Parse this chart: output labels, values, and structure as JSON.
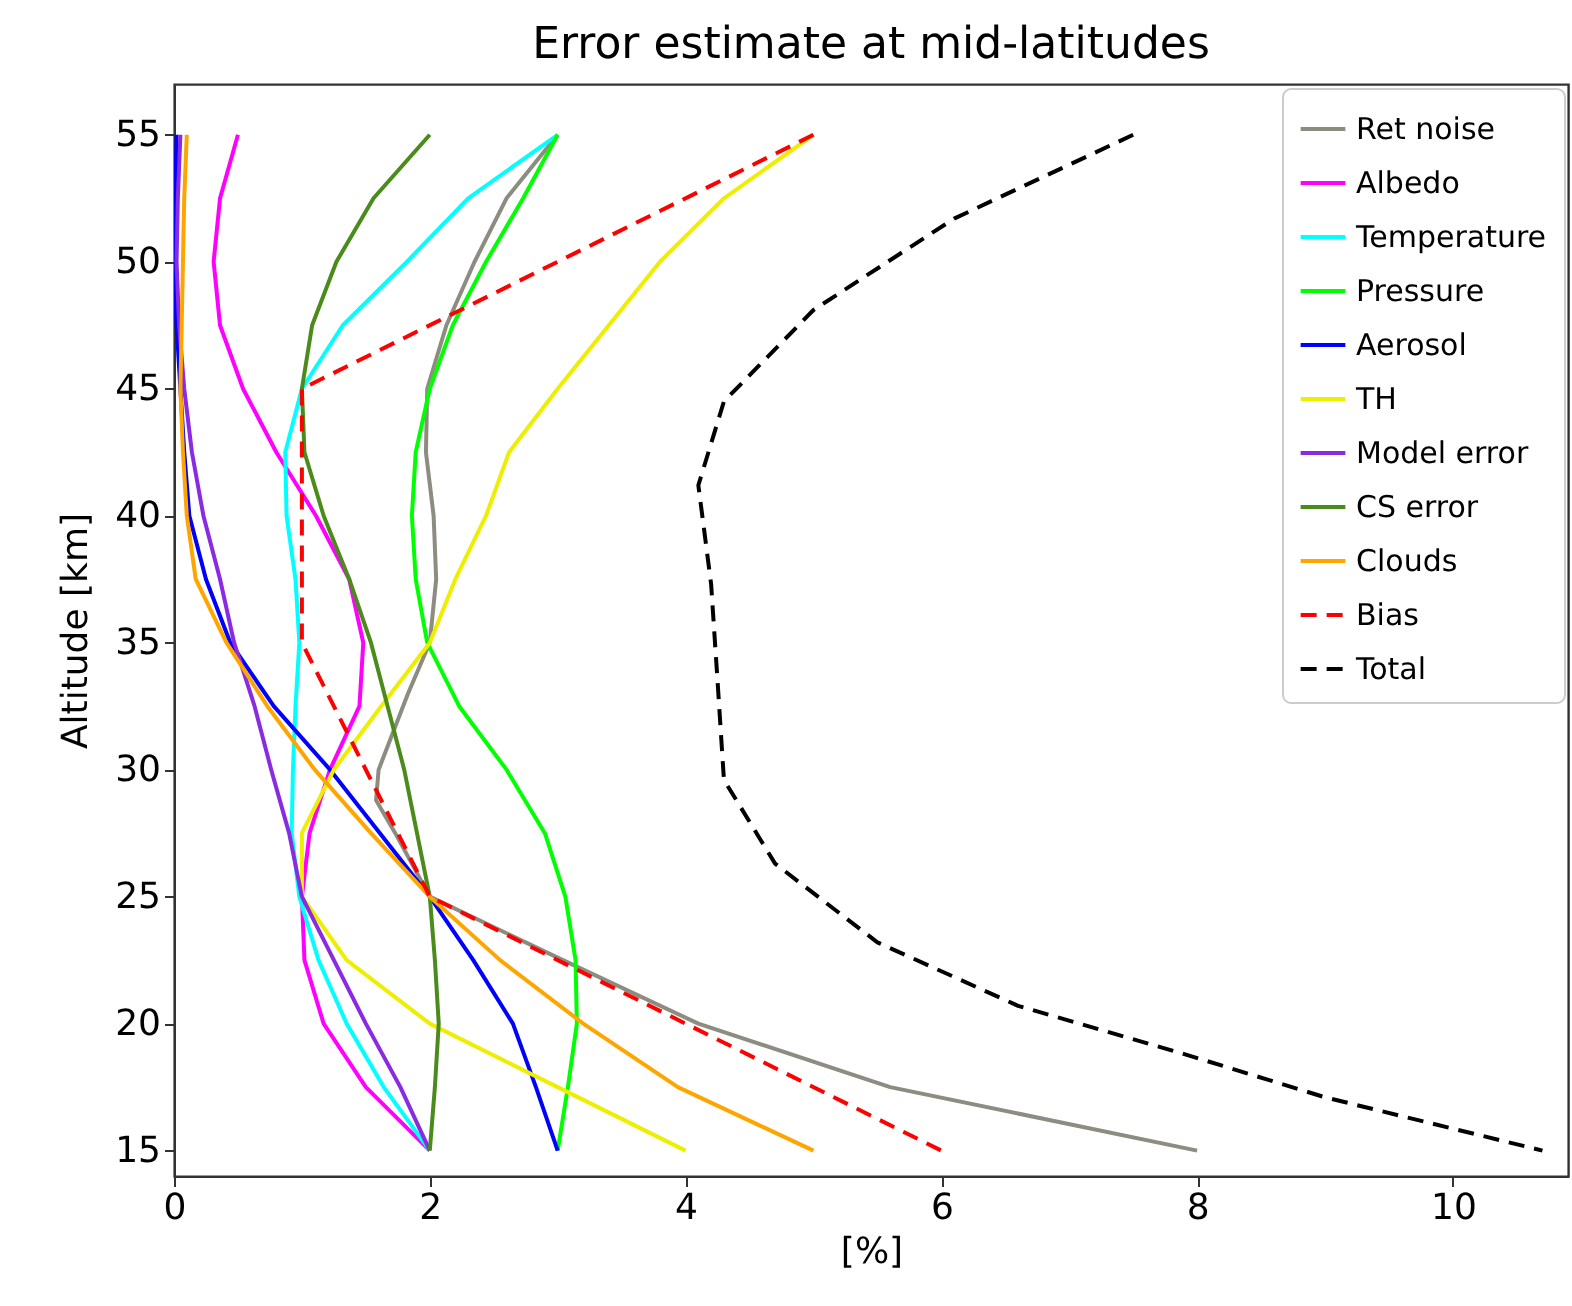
{
  "chart_data": {
    "type": "line",
    "title": "Error estimate at mid-latitudes",
    "xlabel": "[%]",
    "ylabel": "Altitude [km]",
    "xlim": [
      0,
      10.9
    ],
    "xticks": [
      0,
      2,
      4,
      6,
      8,
      10
    ],
    "ylim": [
      14,
      57
    ],
    "yticks": [
      15,
      20,
      25,
      30,
      35,
      40,
      45,
      50,
      55
    ],
    "grid": false,
    "legend": "top right",
    "marker": "none",
    "series": [
      {
        "name": "Ret noise",
        "color": "#8c8c80",
        "line_style": "solid",
        "x": [
          3.0,
          2.6,
          2.35,
          2.13,
          1.98,
          1.97,
          2.03,
          2.05,
          2.0,
          1.83,
          1.6,
          1.58,
          1.73,
          2.0,
          3.0,
          4.1,
          5.6,
          8.0
        ],
        "values": [
          55,
          52.5,
          50,
          47.5,
          45,
          42.5,
          40,
          37.5,
          35,
          33,
          30,
          28.8,
          27.5,
          25,
          22.6,
          20,
          17.5,
          15
        ]
      },
      {
        "name": "Albedo",
        "color": "#ff00ff",
        "line_style": "solid",
        "x": [
          0.5,
          0.36,
          0.31,
          0.36,
          0.54,
          0.8,
          1.11,
          1.37,
          1.48,
          1.45,
          1.22,
          1.06,
          1.0,
          1.02,
          1.17,
          1.5,
          2.0
        ],
        "values": [
          55,
          52.5,
          50,
          47.5,
          45,
          42.5,
          40,
          37.5,
          35,
          32.5,
          30,
          27.5,
          25,
          22.5,
          20,
          17.5,
          15
        ]
      },
      {
        "name": "Temperature",
        "color": "#00ffff",
        "line_style": "solid",
        "x": [
          3.0,
          2.3,
          1.82,
          1.32,
          1.0,
          0.87,
          0.88,
          0.95,
          0.98,
          0.95,
          0.93,
          0.92,
          0.98,
          1.13,
          1.35,
          1.64,
          2.0
        ],
        "values": [
          55,
          52.5,
          50,
          47.5,
          45,
          42.5,
          40,
          37.5,
          35,
          32.5,
          30,
          27.5,
          25,
          22.5,
          20,
          17.5,
          15
        ]
      },
      {
        "name": "Pressure",
        "color": "#00ff00",
        "line_style": "solid",
        "x": [
          3.0,
          2.73,
          2.44,
          2.18,
          2.0,
          1.89,
          1.86,
          1.89,
          1.98,
          2.23,
          2.6,
          2.9,
          3.06,
          3.14,
          3.15,
          3.08,
          3.0
        ],
        "values": [
          55,
          52.5,
          50,
          47.5,
          45,
          42.5,
          40,
          37.5,
          35,
          32.5,
          30,
          27.5,
          25,
          22.5,
          20,
          17.5,
          15
        ]
      },
      {
        "name": "Aerosol",
        "color": "#0000ff",
        "line_style": "solid",
        "x": [
          0.02,
          0.01,
          0.0,
          0.02,
          0.05,
          0.08,
          0.12,
          0.25,
          0.44,
          0.78,
          1.22,
          1.61,
          2.0,
          2.34,
          2.65,
          2.83,
          3.0
        ],
        "values": [
          55,
          52.5,
          50,
          47.5,
          45,
          42.5,
          40,
          37.5,
          35,
          32.5,
          30,
          27.5,
          25,
          22.5,
          20,
          17.5,
          15
        ]
      },
      {
        "name": "TH",
        "color": "#eeee00",
        "line_style": "solid",
        "x": [
          5.0,
          4.3,
          3.8,
          3.4,
          3.0,
          2.62,
          2.44,
          2.2,
          2.0,
          1.62,
          1.25,
          1.0,
          1.0,
          1.35,
          2.0,
          3.0,
          4.0
        ],
        "values": [
          55,
          52.5,
          50,
          47.5,
          45,
          42.5,
          40,
          37.5,
          35,
          32.5,
          30,
          27.5,
          25,
          22.5,
          20,
          17.5,
          15
        ]
      },
      {
        "name": "Model error",
        "color": "#8a2be2",
        "line_style": "solid",
        "x": [
          0.05,
          0.03,
          0.02,
          0.04,
          0.08,
          0.14,
          0.23,
          0.36,
          0.47,
          0.63,
          0.76,
          0.9,
          1.0,
          1.25,
          1.5,
          1.77,
          2.0
        ],
        "values": [
          55,
          52.5,
          50,
          47.5,
          45,
          42.5,
          40,
          37.5,
          35,
          32.5,
          30,
          27.5,
          25,
          22.5,
          20,
          17.5,
          15
        ]
      },
      {
        "name": "CS error",
        "color": "#4b8b1b",
        "line_style": "solid",
        "x": [
          2.0,
          1.56,
          1.27,
          1.08,
          1.0,
          1.02,
          1.17,
          1.37,
          1.54,
          1.67,
          1.8,
          1.9,
          2.0,
          2.04,
          2.07,
          2.04,
          2.0
        ],
        "values": [
          55,
          52.5,
          50,
          47.5,
          45,
          42.5,
          40,
          37.5,
          35,
          32.5,
          30,
          27.5,
          25,
          22.5,
          20,
          17.5,
          15
        ]
      },
      {
        "name": "Clouds",
        "color": "#ffa500",
        "line_style": "solid",
        "x": [
          0.1,
          0.08,
          0.07,
          0.06,
          0.05,
          0.07,
          0.1,
          0.17,
          0.41,
          0.73,
          1.1,
          1.54,
          2.0,
          2.55,
          3.2,
          3.94,
          5.0
        ],
        "values": [
          55,
          52.5,
          50,
          47.5,
          45,
          42.5,
          40,
          37.5,
          35,
          32.5,
          30,
          27.5,
          25,
          22.5,
          20,
          17.5,
          15
        ]
      },
      {
        "name": "Bias",
        "color": "#ff0000",
        "line_style": "dashed",
        "x": [
          5,
          1,
          1,
          2,
          6
        ],
        "values": [
          55,
          45,
          35,
          25,
          15
        ]
      },
      {
        "name": "Total",
        "color": "#000000",
        "line_style": "dashed",
        "x": [
          7.5,
          6.1,
          5.0,
          4.3,
          4.1,
          4.2,
          4.25,
          4.3,
          4.7,
          5.5,
          6.6,
          7.9,
          9.0,
          10.7
        ],
        "values": [
          55,
          51.7,
          48.1,
          44.5,
          41.2,
          37.3,
          33.5,
          29.6,
          26.3,
          23.2,
          20.7,
          18.8,
          17.1,
          15
        ]
      }
    ]
  }
}
